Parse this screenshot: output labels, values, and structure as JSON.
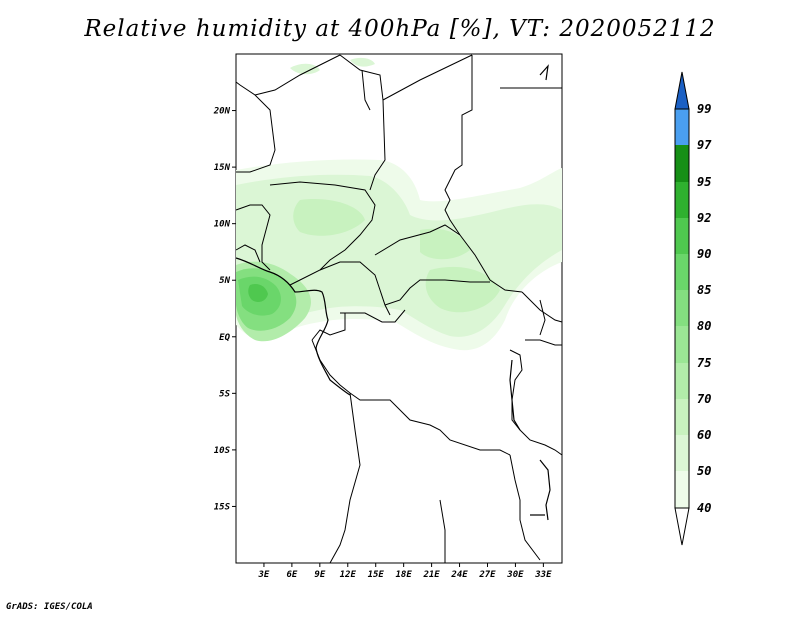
{
  "title": "Relative humidity at 400hPa [%], VT: 2020052112",
  "credit": "GrADS: IGES/COLA",
  "map": {
    "lon_range": [
      0,
      35
    ],
    "lat_range": [
      -20,
      25
    ],
    "lat_ticks": [
      {
        "value": 20,
        "label": "20N"
      },
      {
        "value": 15,
        "label": "15N"
      },
      {
        "value": 10,
        "label": "10N"
      },
      {
        "value": 5,
        "label": "5N"
      },
      {
        "value": 0,
        "label": "EQ"
      },
      {
        "value": -5,
        "label": "5S"
      },
      {
        "value": -10,
        "label": "10S"
      },
      {
        "value": -15,
        "label": "15S"
      }
    ],
    "lon_ticks": [
      {
        "value": 3,
        "label": "3E"
      },
      {
        "value": 6,
        "label": "6E"
      },
      {
        "value": 9,
        "label": "9E"
      },
      {
        "value": 12,
        "label": "12E"
      },
      {
        "value": 15,
        "label": "15E"
      },
      {
        "value": 18,
        "label": "18E"
      },
      {
        "value": 21,
        "label": "21E"
      },
      {
        "value": 24,
        "label": "24E"
      },
      {
        "value": 27,
        "label": "27E"
      },
      {
        "value": 30,
        "label": "30E"
      },
      {
        "value": 33,
        "label": "33E"
      }
    ]
  },
  "colorbar": {
    "levels": [
      "40",
      "50",
      "60",
      "70",
      "75",
      "80",
      "85",
      "90",
      "92",
      "95",
      "97",
      "99"
    ],
    "colors": [
      "#eefbea",
      "#dbf6d5",
      "#c8f2bf",
      "#b2ecaa",
      "#9be695",
      "#84df80",
      "#6ad66a",
      "#4fc84f",
      "#2fb12f",
      "#168f16",
      "#4a9ff0",
      "#2e7fdf",
      "#1b60c4"
    ]
  },
  "colors": {
    "frame": "#000000",
    "background": "#ffffff"
  }
}
